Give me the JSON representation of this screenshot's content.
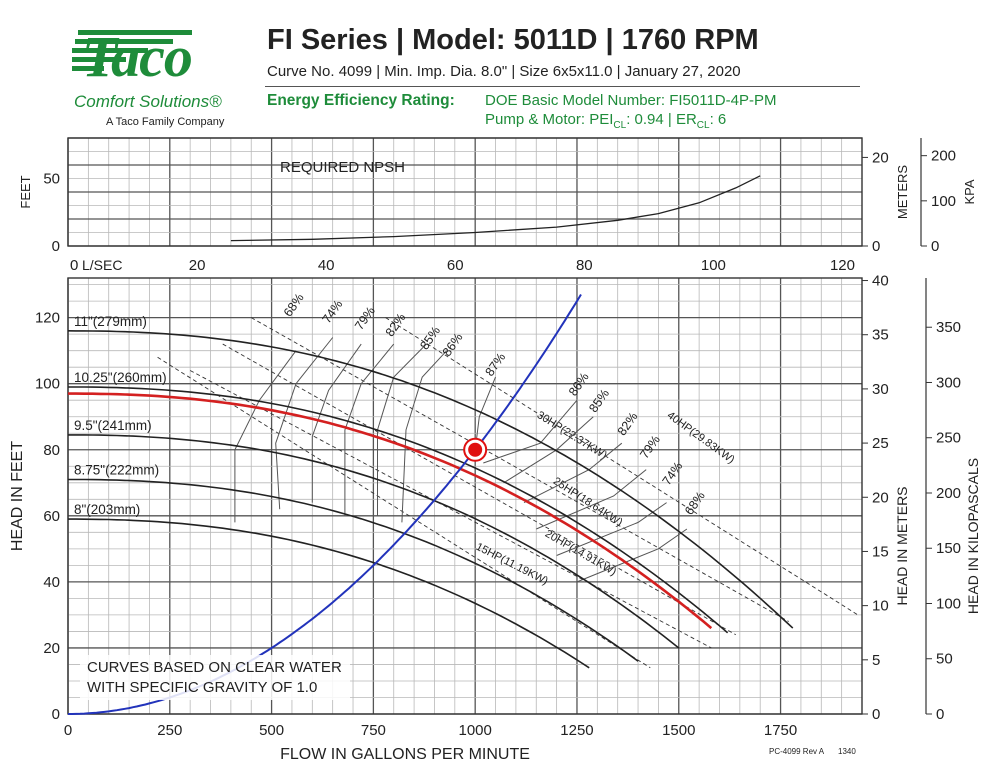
{
  "header": {
    "logo_main": "Taco",
    "logo_sub": "Comfort Solutions®",
    "logo_family": "A Taco Family Company",
    "title": "FI Series | Model: 5011D | 1760 RPM",
    "subtitle": "Curve No. 4099 | Min. Imp. Dia. 8.0\" | Size 6x5x11.0 | January 27, 2020",
    "efficiency_label": "Energy Efficiency Rating:",
    "doe_text": "DOE Basic Model Number: FI5011D-4P-PM",
    "pei_prefix": "Pump & Motor: PEI",
    "pei_sub": "CL",
    "pei_value": ": 0.94 | ER",
    "er_sub": "CL",
    "er_value": ": 6"
  },
  "colors": {
    "brand_green": "#1e8c3a",
    "system_curve": "#2233bb",
    "selected_curve": "#d42020",
    "operating_point": "#e01010"
  },
  "chart_data": [
    {
      "type": "line",
      "title": "REQUIRED NPSH",
      "ylabel_left": "FEET",
      "ylabel_right": "METERS",
      "ylabel_right2": "KPA",
      "x_unit": "gpm",
      "xlim": [
        0,
        1950
      ],
      "ylim": [
        0,
        80
      ],
      "y_ticks": [
        0,
        50
      ],
      "meters_ticks": [
        0,
        20
      ],
      "kpa_ticks": [
        0,
        100,
        200
      ],
      "series": [
        {
          "x": [
            400,
            600,
            800,
            1000,
            1200,
            1350,
            1450,
            1550,
            1640,
            1700
          ],
          "y": [
            4,
            5,
            7,
            10,
            14,
            19,
            24,
            32,
            43,
            52
          ]
        }
      ]
    },
    {
      "type": "line",
      "xlabel": "FLOW IN GALLONS PER MINUTE",
      "ylabel": "HEAD IN FEET",
      "ylabel_right": "HEAD IN METERS",
      "ylabel_right2": "HEAD IN KILOPASCALS",
      "lsec_label": "L/SEC",
      "lsec_ticks": [
        0,
        20,
        40,
        60,
        80,
        100,
        120
      ],
      "xlim": [
        0,
        1950
      ],
      "ylim": [
        0,
        132
      ],
      "x_ticks": [
        0,
        250,
        500,
        750,
        1000,
        1250,
        1500,
        1750
      ],
      "y_ticks": [
        0,
        20,
        40,
        60,
        80,
        100,
        120
      ],
      "meters_ticks": [
        0,
        5,
        10,
        15,
        20,
        25,
        30,
        35,
        40
      ],
      "kpa_ticks": [
        0,
        50,
        100,
        150,
        200,
        250,
        300,
        350
      ],
      "note_line1": "CURVES BASED ON CLEAR WATER",
      "note_line2": "WITH SPECIFIC GRAVITY OF 1.0",
      "footer_code": "PC-4099 Rev A",
      "footer_num": "1340",
      "impeller_curves": [
        {
          "name": "11\"(279mm)",
          "shutoff": 116,
          "max_flow": 1780,
          "end_head": 26
        },
        {
          "name": "10.25\"(260mm)",
          "shutoff": 99,
          "max_flow": 1635,
          "end_head": 23
        },
        {
          "name": "9.5\"(241mm)",
          "shutoff": 84.5,
          "max_flow": 1510,
          "end_head": 19
        },
        {
          "name": "8.75\"(222mm)",
          "shutoff": 71,
          "max_flow": 1400,
          "end_head": 16
        },
        {
          "name": "8\"(203mm)",
          "shutoff": 59,
          "max_flow": 1280,
          "end_head": 14
        }
      ],
      "selected_curve": {
        "shutoff": 97,
        "max_flow": 1580,
        "end_head": 26
      },
      "operating_point": {
        "x": 1000,
        "y": 80
      },
      "system_curve": {
        "x": [
          0,
          250,
          500,
          750,
          1000,
          1250
        ],
        "y": [
          0,
          5,
          20,
          45,
          80,
          125
        ]
      },
      "efficiency_labels": [
        "68%",
        "74%",
        "79%",
        "82%",
        "85%",
        "86%",
        "87%",
        "86%",
        "85%",
        "82%",
        "79%",
        "74%",
        "68%"
      ],
      "power_labels": [
        "15HP(11.19KW)",
        "20HP(14.91KW)",
        "25HP(18.64KW)",
        "30HP(22.37KW)",
        "40HP(29.83KW)"
      ]
    }
  ]
}
